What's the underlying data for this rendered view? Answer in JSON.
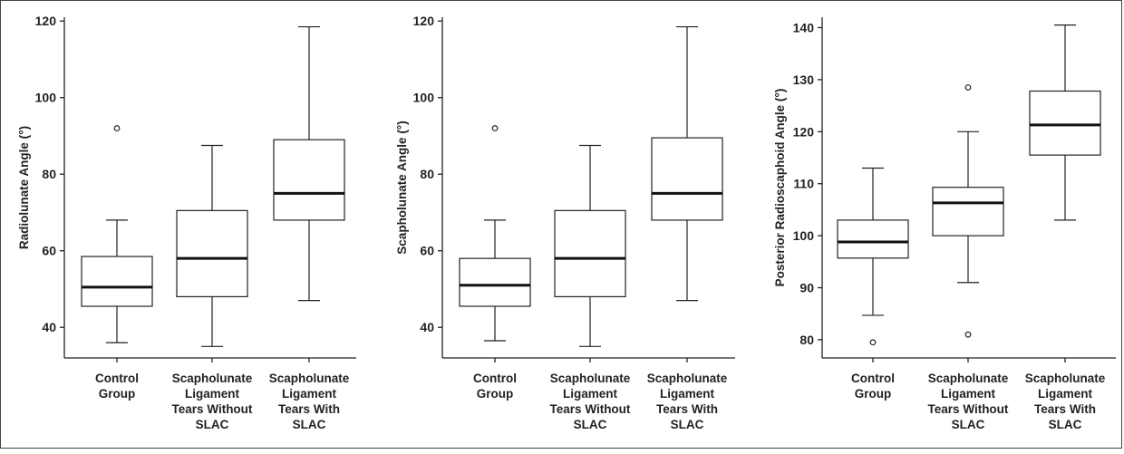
{
  "chart_data": [
    {
      "type": "box",
      "title": "",
      "ylabel": "Radiolunate Angle (°)",
      "xlabel": "",
      "ylim": [
        32,
        121
      ],
      "yticks": [
        40,
        60,
        80,
        100,
        120
      ],
      "grid": false,
      "categories": [
        [
          "Control",
          "Group"
        ],
        [
          "Scapholunate",
          "Ligament",
          "Tears Without",
          "SLAC"
        ],
        [
          "Scapholunate",
          "Ligament",
          "Tears With",
          "SLAC"
        ]
      ],
      "boxes": [
        {
          "whisker_low": 36,
          "q1": 45.5,
          "median": 50.5,
          "q3": 58.5,
          "whisker_high": 68,
          "outliers": [
            92
          ]
        },
        {
          "whisker_low": 35,
          "q1": 48,
          "median": 58,
          "q3": 70.5,
          "whisker_high": 87.5,
          "outliers": []
        },
        {
          "whisker_low": 47,
          "q1": 68,
          "median": 75,
          "q3": 89,
          "whisker_high": 118.5,
          "outliers": []
        }
      ]
    },
    {
      "type": "box",
      "title": "",
      "ylabel": "Scapholunate Angle (°)",
      "xlabel": "",
      "ylim": [
        32,
        121
      ],
      "yticks": [
        40,
        60,
        80,
        100,
        120
      ],
      "grid": false,
      "categories": [
        [
          "Control",
          "Group"
        ],
        [
          "Scapholunate",
          "Ligament",
          "Tears Without",
          "SLAC"
        ],
        [
          "Scapholunate",
          "Ligament",
          "Tears With",
          "SLAC"
        ]
      ],
      "boxes": [
        {
          "whisker_low": 36.5,
          "q1": 45.5,
          "median": 51,
          "q3": 58,
          "whisker_high": 68,
          "outliers": [
            92
          ]
        },
        {
          "whisker_low": 35,
          "q1": 48,
          "median": 58,
          "q3": 70.5,
          "whisker_high": 87.5,
          "outliers": []
        },
        {
          "whisker_low": 47,
          "q1": 68,
          "median": 75,
          "q3": 89.5,
          "whisker_high": 118.5,
          "outliers": []
        }
      ]
    },
    {
      "type": "box",
      "title": "",
      "ylabel": "Posterior Radioscaphoid Angle (°)",
      "xlabel": "",
      "ylim": [
        76.5,
        142
      ],
      "yticks": [
        80,
        90,
        100,
        110,
        120,
        130,
        140
      ],
      "grid": false,
      "categories": [
        [
          "Control",
          "Group"
        ],
        [
          "Scapholunate",
          "Ligament",
          "Tears Without",
          "SLAC"
        ],
        [
          "Scapholunate",
          "Ligament",
          "Tears With",
          "SLAC"
        ]
      ],
      "boxes": [
        {
          "whisker_low": 84.7,
          "q1": 95.7,
          "median": 98.8,
          "q3": 103,
          "whisker_high": 113,
          "outliers": [
            79.5
          ]
        },
        {
          "whisker_low": 91,
          "q1": 100,
          "median": 106.3,
          "q3": 109.3,
          "whisker_high": 120,
          "outliers": [
            128.5,
            81
          ]
        },
        {
          "whisker_low": 103,
          "q1": 115.5,
          "median": 121.3,
          "q3": 127.8,
          "whisker_high": 140.5,
          "outliers": []
        }
      ]
    }
  ]
}
